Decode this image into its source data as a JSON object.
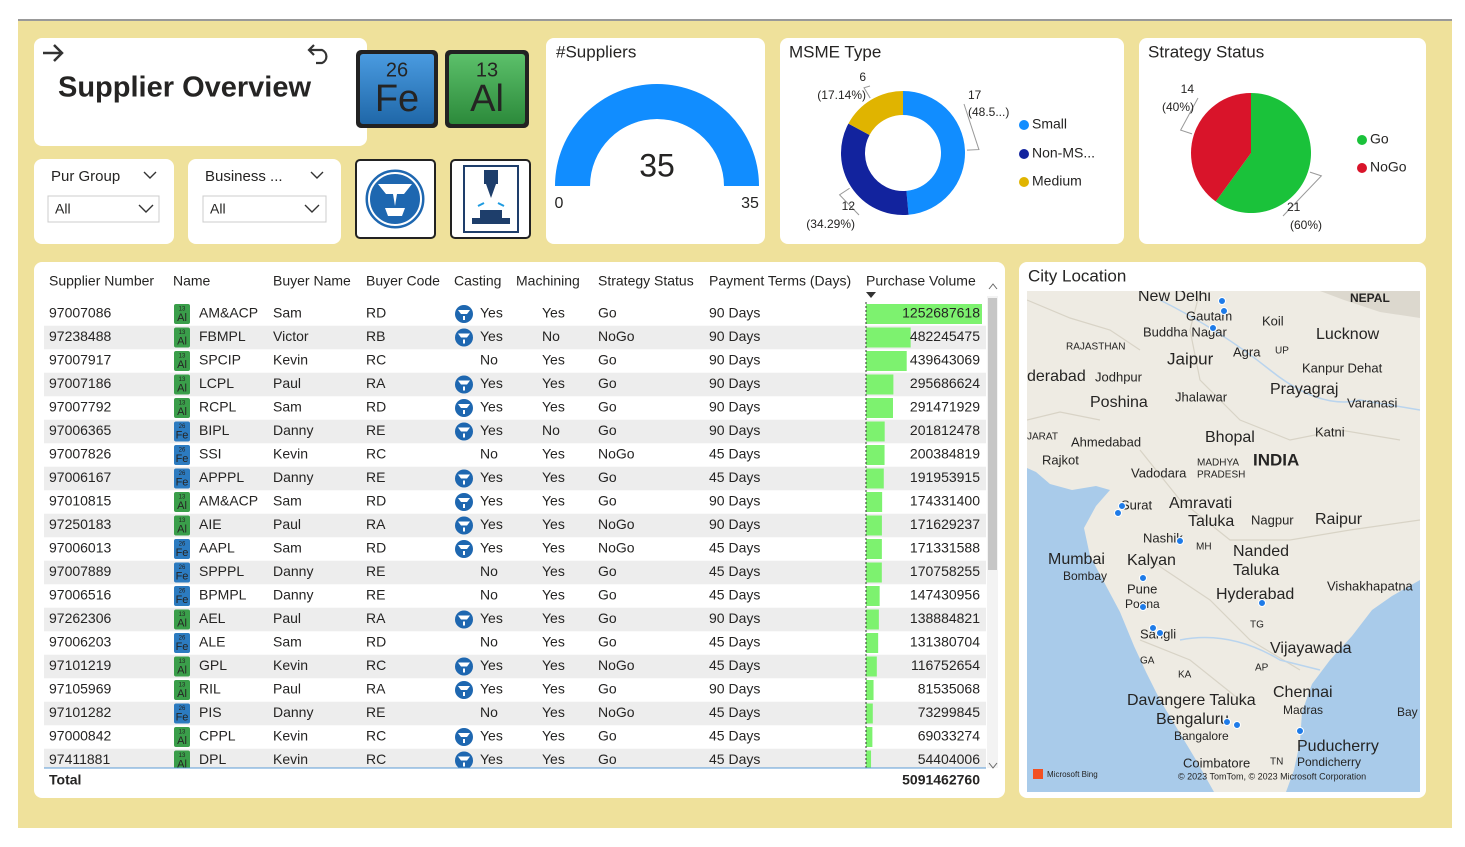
{
  "header": {
    "title": "Supplier Overview",
    "tiles": [
      {
        "number": 26,
        "symbol": "Fe"
      },
      {
        "number": 13,
        "symbol": "Al"
      }
    ]
  },
  "filters": [
    {
      "title": "Pur Group",
      "value": "All"
    },
    {
      "title": "Business ...",
      "value": "All"
    }
  ],
  "chart_data": [
    {
      "type": "gauge",
      "title": "#Suppliers",
      "value": 35,
      "min": 0,
      "max": 35,
      "color": "#118DFF"
    },
    {
      "type": "donut",
      "title": "MSME Type",
      "categories": [
        "Small",
        "Non-MS...",
        "Medium"
      ],
      "values": [
        17,
        12,
        6
      ],
      "percents": [
        48.57,
        34.29,
        17.14
      ],
      "percent_labels": [
        "(48.5...)",
        "(34.29%)",
        "(17.14%)"
      ],
      "colors": [
        "#118DFF",
        "#12239E",
        "#E0B400"
      ]
    },
    {
      "type": "pie",
      "title": "Strategy Status",
      "categories": [
        "Go",
        "NoGo"
      ],
      "values": [
        21,
        14
      ],
      "percents": [
        60,
        40
      ],
      "percent_labels": [
        "(60%)",
        "(40%)"
      ],
      "colors": [
        "#1AC23A",
        "#D9142A"
      ]
    }
  ],
  "table": {
    "columns": [
      "Supplier Number",
      "Name",
      "Buyer Name",
      "Buyer Code",
      "Casting",
      "Machining",
      "Strategy Status",
      "Payment Terms (Days)",
      "Purchase Volume"
    ],
    "bar_color": "#7DF26F",
    "rows": [
      {
        "supplier_number": "97007086",
        "metal": "Al",
        "name": "AM&ACP",
        "buyer_name": "Sam",
        "buyer_code": "RD",
        "casting": "Yes",
        "machining": "Yes",
        "strategy_status": "Go",
        "payment_terms": "90 Days",
        "purchase_volume": 1252687618
      },
      {
        "supplier_number": "97238488",
        "metal": "Al",
        "name": "FBMPL",
        "buyer_name": "Victor",
        "buyer_code": "RB",
        "casting": "Yes",
        "machining": "No",
        "strategy_status": "NoGo",
        "payment_terms": "90 Days",
        "purchase_volume": 482245475
      },
      {
        "supplier_number": "97007917",
        "metal": "Al",
        "name": "SPCIP",
        "buyer_name": "Kevin",
        "buyer_code": "RC",
        "casting": "No",
        "machining": "Yes",
        "strategy_status": "Go",
        "payment_terms": "90 Days",
        "purchase_volume": 439643069
      },
      {
        "supplier_number": "97007186",
        "metal": "Al",
        "name": "LCPL",
        "buyer_name": "Paul",
        "buyer_code": "RA",
        "casting": "Yes",
        "machining": "Yes",
        "strategy_status": "Go",
        "payment_terms": "90 Days",
        "purchase_volume": 295686624
      },
      {
        "supplier_number": "97007792",
        "metal": "Al",
        "name": "RCPL",
        "buyer_name": "Sam",
        "buyer_code": "RD",
        "casting": "Yes",
        "machining": "Yes",
        "strategy_status": "Go",
        "payment_terms": "90 Days",
        "purchase_volume": 291471929
      },
      {
        "supplier_number": "97006365",
        "metal": "Fe",
        "name": "BIPL",
        "buyer_name": "Danny",
        "buyer_code": "RE",
        "casting": "Yes",
        "machining": "No",
        "strategy_status": "Go",
        "payment_terms": "90 Days",
        "purchase_volume": 201812478
      },
      {
        "supplier_number": "97007826",
        "metal": "Fe",
        "name": "SSI",
        "buyer_name": "Kevin",
        "buyer_code": "RC",
        "casting": "No",
        "machining": "Yes",
        "strategy_status": "NoGo",
        "payment_terms": "45 Days",
        "purchase_volume": 200384819
      },
      {
        "supplier_number": "97006167",
        "metal": "Fe",
        "name": "APPPL",
        "buyer_name": "Danny",
        "buyer_code": "RE",
        "casting": "Yes",
        "machining": "Yes",
        "strategy_status": "Go",
        "payment_terms": "45 Days",
        "purchase_volume": 191953915
      },
      {
        "supplier_number": "97010815",
        "metal": "Al",
        "name": "AM&ACP",
        "buyer_name": "Sam",
        "buyer_code": "RD",
        "casting": "Yes",
        "machining": "Yes",
        "strategy_status": "Go",
        "payment_terms": "90 Days",
        "purchase_volume": 174331400
      },
      {
        "supplier_number": "97250183",
        "metal": "Al",
        "name": "AIE",
        "buyer_name": "Paul",
        "buyer_code": "RA",
        "casting": "Yes",
        "machining": "Yes",
        "strategy_status": "NoGo",
        "payment_terms": "90 Days",
        "purchase_volume": 171629237
      },
      {
        "supplier_number": "97006013",
        "metal": "Fe",
        "name": "AAPL",
        "buyer_name": "Sam",
        "buyer_code": "RD",
        "casting": "Yes",
        "machining": "Yes",
        "strategy_status": "NoGo",
        "payment_terms": "45 Days",
        "purchase_volume": 171331588
      },
      {
        "supplier_number": "97007889",
        "metal": "Fe",
        "name": "SPPPL",
        "buyer_name": "Danny",
        "buyer_code": "RE",
        "casting": "No",
        "machining": "Yes",
        "strategy_status": "Go",
        "payment_terms": "45 Days",
        "purchase_volume": 170758255
      },
      {
        "supplier_number": "97006516",
        "metal": "Fe",
        "name": "BPMPL",
        "buyer_name": "Danny",
        "buyer_code": "RE",
        "casting": "No",
        "machining": "Yes",
        "strategy_status": "Go",
        "payment_terms": "45 Days",
        "purchase_volume": 147430956
      },
      {
        "supplier_number": "97262306",
        "metal": "Al",
        "name": "AEL",
        "buyer_name": "Paul",
        "buyer_code": "RA",
        "casting": "Yes",
        "machining": "Yes",
        "strategy_status": "Go",
        "payment_terms": "90 Days",
        "purchase_volume": 138884821
      },
      {
        "supplier_number": "97006203",
        "metal": "Fe",
        "name": "ALE",
        "buyer_name": "Sam",
        "buyer_code": "RD",
        "casting": "No",
        "machining": "Yes",
        "strategy_status": "Go",
        "payment_terms": "45 Days",
        "purchase_volume": 131380704
      },
      {
        "supplier_number": "97101219",
        "metal": "Al",
        "name": "GPL",
        "buyer_name": "Kevin",
        "buyer_code": "RC",
        "casting": "Yes",
        "machining": "Yes",
        "strategy_status": "NoGo",
        "payment_terms": "45 Days",
        "purchase_volume": 116752654
      },
      {
        "supplier_number": "97105969",
        "metal": "Al",
        "name": "RIL",
        "buyer_name": "Paul",
        "buyer_code": "RA",
        "casting": "Yes",
        "machining": "Yes",
        "strategy_status": "Go",
        "payment_terms": "90 Days",
        "purchase_volume": 81535068
      },
      {
        "supplier_number": "97101282",
        "metal": "Fe",
        "name": "PIS",
        "buyer_name": "Danny",
        "buyer_code": "RE",
        "casting": "No",
        "machining": "Yes",
        "strategy_status": "NoGo",
        "payment_terms": "45 Days",
        "purchase_volume": 73299845
      },
      {
        "supplier_number": "97000842",
        "metal": "Al",
        "name": "CPPL",
        "buyer_name": "Kevin",
        "buyer_code": "RC",
        "casting": "Yes",
        "machining": "Yes",
        "strategy_status": "Go",
        "payment_terms": "45 Days",
        "purchase_volume": 69033274
      },
      {
        "supplier_number": "97411881",
        "metal": "Al",
        "name": "DPL",
        "buyer_name": "Kevin",
        "buyer_code": "RC",
        "casting": "Yes",
        "machining": "Yes",
        "strategy_status": "Go",
        "payment_terms": "45 Days",
        "purchase_volume": 54404006
      }
    ],
    "total_label": "Total",
    "total_value": 5091462760
  },
  "map": {
    "title": "City Location",
    "labels": [
      "New Delhi",
      "NEPAL",
      "Gautam",
      "Buddha Nagar",
      "Koil",
      "Lucknow",
      "RAJASTHAN",
      "Jaipur",
      "Agra",
      "UP",
      "Kanpur Dehat",
      "derabad",
      "Jodhpur",
      "Prayagraj",
      "Varanasi",
      "Poshina",
      "Jhalawar",
      "Bhopal",
      "Katni",
      "JARAT",
      "Ahmedabad",
      "Rajkot",
      "INDIA",
      "MADHYA",
      "PRADESH",
      "Vadodara",
      "Surat",
      "Amravati",
      "Taluka",
      "Nagpur",
      "Raipur",
      "Nashik",
      "MH",
      "Mumbai",
      "Kalyan",
      "Bombay",
      "Nanded",
      "Taluka",
      "Pune",
      "Poona",
      "Hyderabad",
      "Vishakhapatna",
      "Sangli",
      "TG",
      "GA",
      "Vijayawada",
      "AP",
      "KA",
      "Davangere Taluka",
      "Chennai",
      "Bengaluru",
      "Madras",
      "Bangalore",
      "Puducherry",
      "Pondicherry",
      "Coimbatore",
      "TN",
      "Bay"
    ],
    "provider": "Microsoft Bing",
    "attribution": "© 2023 TomTom, © 2023 Microsoft Corporation"
  }
}
